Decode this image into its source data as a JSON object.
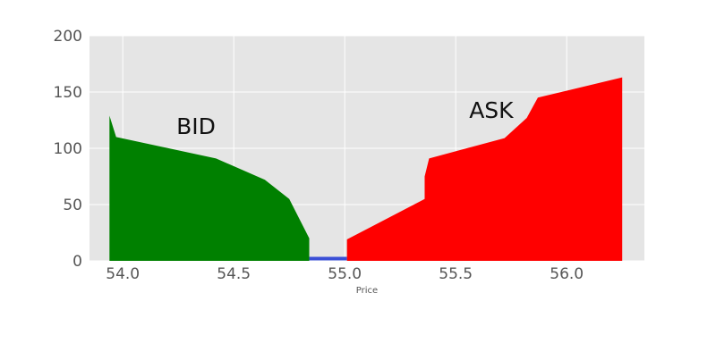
{
  "chart_data": {
    "type": "area",
    "title": "",
    "xlabel": "Price",
    "ylabel": "",
    "xlim": [
      53.85,
      56.35
    ],
    "ylim": [
      0,
      200
    ],
    "xticks": [
      54.0,
      54.5,
      55.0,
      55.5,
      56.0
    ],
    "xtick_labels": [
      "54.0",
      "54.5",
      "55.0",
      "55.5",
      "56.0"
    ],
    "yticks": [
      0,
      50,
      100,
      150,
      200
    ],
    "ytick_labels": [
      "0",
      "50",
      "100",
      "150",
      "200"
    ],
    "grid": true,
    "series": [
      {
        "color": "#008000",
        "points": [
          [
            53.94,
            129
          ],
          [
            53.97,
            110
          ],
          [
            54.42,
            91
          ],
          [
            54.64,
            72
          ],
          [
            54.75,
            55
          ],
          [
            54.84,
            20
          ],
          [
            54.84,
            0
          ]
        ]
      },
      {
        "color": "#3a4fd6",
        "points": [
          [
            54.84,
            2
          ],
          [
            55.01,
            2
          ]
        ]
      },
      {
        "color": "#ff0000",
        "points": [
          [
            55.01,
            0
          ],
          [
            55.01,
            19
          ],
          [
            55.36,
            55
          ],
          [
            55.36,
            75
          ],
          [
            55.38,
            91
          ],
          [
            55.72,
            109
          ],
          [
            55.82,
            127
          ],
          [
            55.87,
            145
          ],
          [
            56.25,
            163
          ]
        ]
      }
    ],
    "annotations": [
      {
        "text": "BID",
        "x": 54.33,
        "y": 120
      },
      {
        "text": "ASK",
        "x": 55.66,
        "y": 134
      }
    ]
  }
}
